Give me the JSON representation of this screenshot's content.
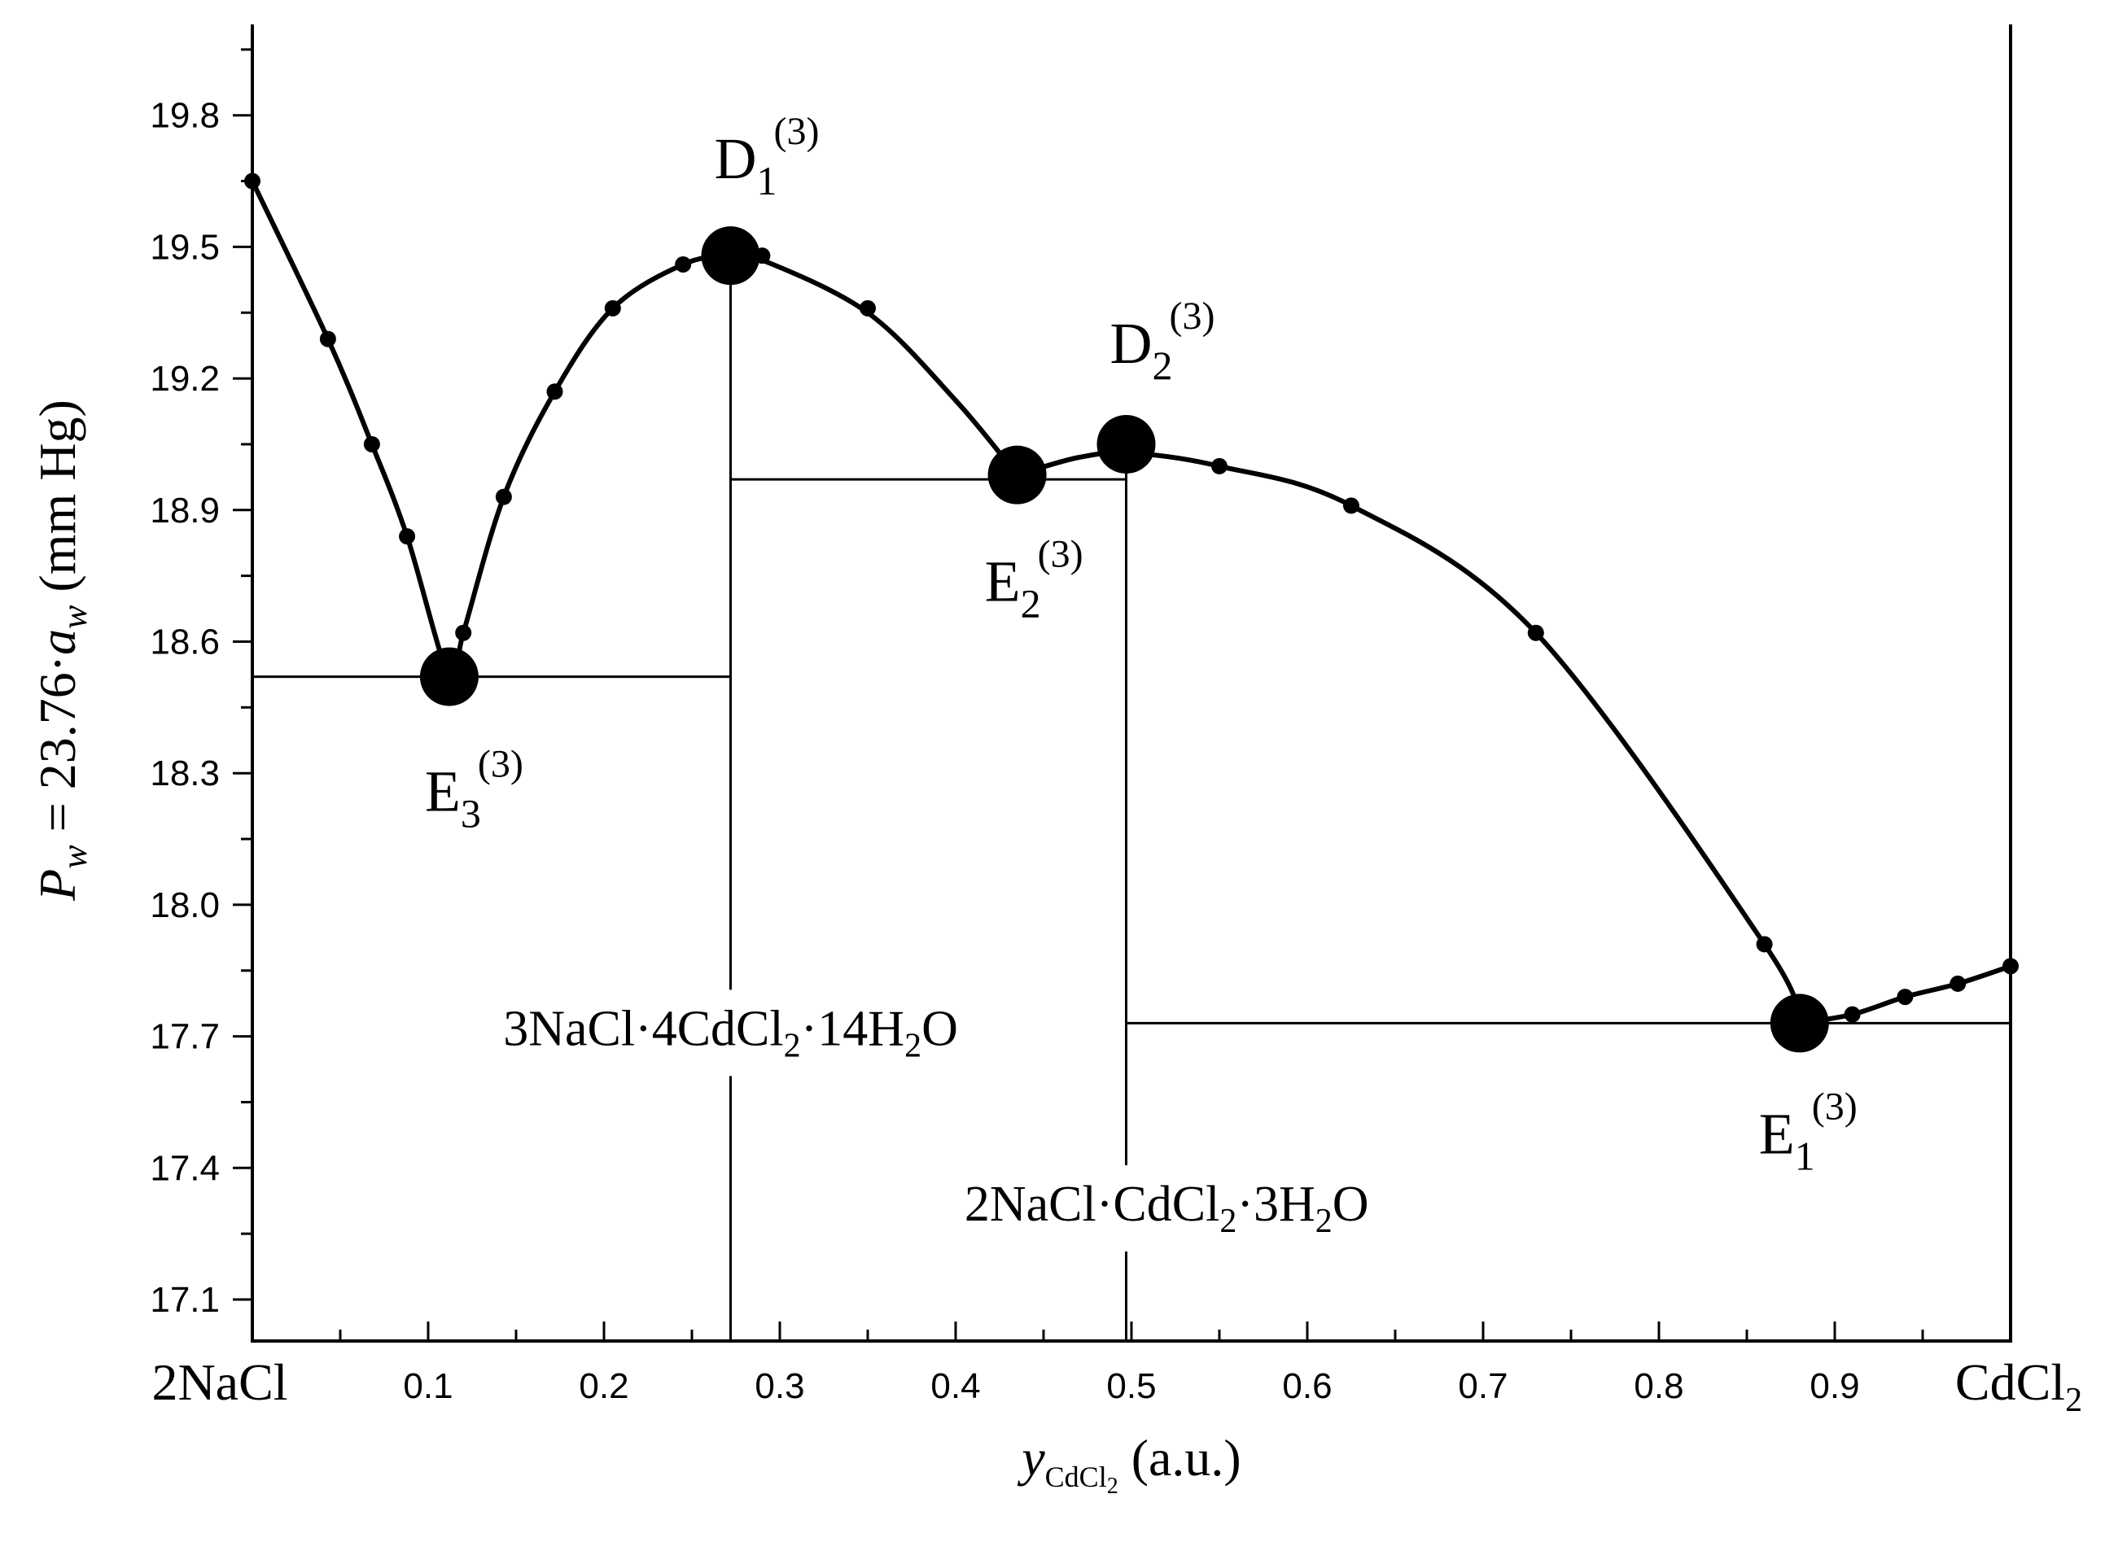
{
  "chart_data": {
    "type": "line",
    "xlabel": {
      "main": "y",
      "sub": "CdCl",
      "sub2": "2",
      "unit": "(a.u.)"
    },
    "ylabel": {
      "text": "P",
      "sub": "w",
      "mid": " = 23.76·",
      "a": "a",
      "asub": "w",
      "unit": " (mm Hg)"
    },
    "xlim": [
      0,
      1
    ],
    "ylim": [
      16.9,
      20.05
    ],
    "x_ticks": [
      0.1,
      0.2,
      0.3,
      0.4,
      0.5,
      0.6,
      0.7,
      0.8,
      0.9
    ],
    "x_tick_labels": [
      "0.1",
      "0.2",
      "0.3",
      "0.4",
      "0.5",
      "0.6",
      "0.7",
      "0.8",
      "0.9"
    ],
    "x_end_labels": {
      "left": "2NaCl",
      "right": "CdCl",
      "right_sub": "2"
    },
    "y_ticks": [
      17.1,
      17.4,
      17.7,
      18.0,
      18.3,
      18.6,
      18.9,
      19.2,
      19.5,
      19.8
    ],
    "y_tick_labels": [
      "17.1",
      "17.4",
      "17.7",
      "18.0",
      "18.3",
      "18.6",
      "18.9",
      "19.2",
      "19.5",
      "19.8"
    ],
    "series": [
      {
        "kind": "points",
        "x": [
          0.0,
          0.043,
          0.068,
          0.088,
          0.12,
          0.143,
          0.172,
          0.205,
          0.245,
          0.29,
          0.35,
          0.55,
          0.625,
          0.73,
          0.86,
          0.91,
          0.94,
          0.97,
          1.0
        ],
        "y": [
          19.65,
          19.29,
          19.05,
          18.84,
          18.62,
          18.93,
          19.17,
          19.36,
          19.46,
          19.48,
          19.36,
          19.0,
          18.91,
          18.62,
          17.91,
          17.75,
          17.79,
          17.82,
          17.86
        ]
      },
      {
        "kind": "curve",
        "x": [
          0.0,
          0.043,
          0.068,
          0.088,
          0.112,
          0.12,
          0.143,
          0.172,
          0.205,
          0.245,
          0.272,
          0.29,
          0.35,
          0.4,
          0.435
        ],
        "y": [
          19.65,
          19.29,
          19.05,
          18.84,
          18.52,
          18.62,
          18.93,
          19.17,
          19.36,
          19.46,
          19.48,
          19.47,
          19.35,
          19.15,
          18.98
        ]
      },
      {
        "kind": "curve",
        "x": [
          0.435,
          0.47,
          0.5,
          0.55,
          0.625,
          0.73,
          0.86,
          0.88
        ],
        "y": [
          18.98,
          19.02,
          19.03,
          19.0,
          18.91,
          18.62,
          17.91,
          17.73
        ]
      },
      {
        "kind": "curve",
        "x": [
          0.88,
          0.91,
          0.94,
          0.97,
          1.0
        ],
        "y": [
          17.73,
          17.75,
          17.79,
          17.82,
          17.86
        ]
      }
    ],
    "special_points": [
      {
        "name": "E",
        "sub": "3",
        "sup": "(3)",
        "x": 0.112,
        "y": 18.52
      },
      {
        "name": "D",
        "sub": "1",
        "sup": "(3)",
        "x": 0.272,
        "y": 19.48
      },
      {
        "name": "E",
        "sub": "2",
        "sup": "(3)",
        "x": 0.435,
        "y": 18.98
      },
      {
        "name": "D",
        "sub": "2",
        "sup": "(3)",
        "x": 0.497,
        "y": 19.05
      },
      {
        "name": "E",
        "sub": "1",
        "sup": "(3)",
        "x": 0.88,
        "y": 17.73
      }
    ],
    "phase_lines": {
      "horizontal": [
        {
          "y": 18.52,
          "x1": 0.0,
          "x2": 0.272
        },
        {
          "y": 18.97,
          "x1": 0.272,
          "x2": 0.497
        },
        {
          "y": 17.73,
          "x1": 0.497,
          "x2": 1.0
        }
      ],
      "vertical": [
        {
          "x": 0.272,
          "y_top": 19.48
        },
        {
          "x": 0.497,
          "y_top": 19.05
        }
      ]
    },
    "compounds": [
      {
        "id": "compound-1",
        "parts": [
          "3NaCl·4CdCl",
          "2",
          "·14H",
          "2",
          "O"
        ],
        "x": 0.272,
        "y": 17.68
      },
      {
        "id": "compound-2",
        "parts": [
          "2NaCl·CdCl",
          "2",
          "·3H",
          "2",
          "O"
        ],
        "x": 0.52,
        "y": 17.28
      }
    ]
  }
}
